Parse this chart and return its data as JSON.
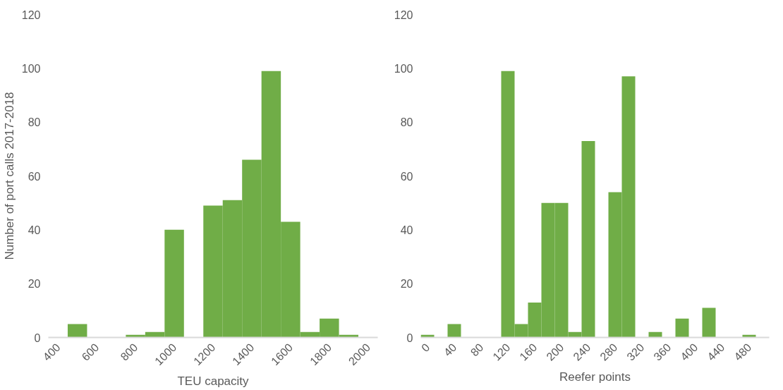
{
  "chart_data": [
    {
      "type": "bar",
      "xlabel": "TEU capacity",
      "ylabel": "Number of port calls 2017-2018",
      "categories": [
        "400",
        null,
        "600",
        null,
        "800",
        null,
        "1000",
        null,
        "1200",
        null,
        "1400",
        null,
        "1600",
        null,
        "1800",
        null,
        "2000"
      ],
      "values": [
        0,
        5,
        0,
        0,
        1,
        2,
        40,
        0,
        49,
        51,
        66,
        99,
        43,
        2,
        7,
        1,
        0
      ],
      "color": "#70ad47",
      "ylim": [
        0,
        120
      ],
      "yticks": [
        0,
        20,
        40,
        60,
        80,
        100,
        120
      ],
      "grid": false
    },
    {
      "type": "bar",
      "xlabel": "Reefer points",
      "categories": [
        "0",
        null,
        "40",
        null,
        "80",
        null,
        "120",
        null,
        "160",
        null,
        "200",
        null,
        "240",
        null,
        "280",
        null,
        "320",
        null,
        "360",
        null,
        "400",
        null,
        "440",
        null,
        "480",
        null
      ],
      "values": [
        1,
        0,
        5,
        0,
        0,
        0,
        99,
        5,
        13,
        50,
        50,
        2,
        73,
        0,
        54,
        97,
        0,
        2,
        0,
        7,
        0,
        11,
        0,
        0,
        1,
        0
      ],
      "color": "#70ad47",
      "ylim": [
        0,
        120
      ],
      "yticks": [
        0,
        20,
        40,
        60,
        80,
        100,
        120
      ],
      "grid": false
    }
  ]
}
